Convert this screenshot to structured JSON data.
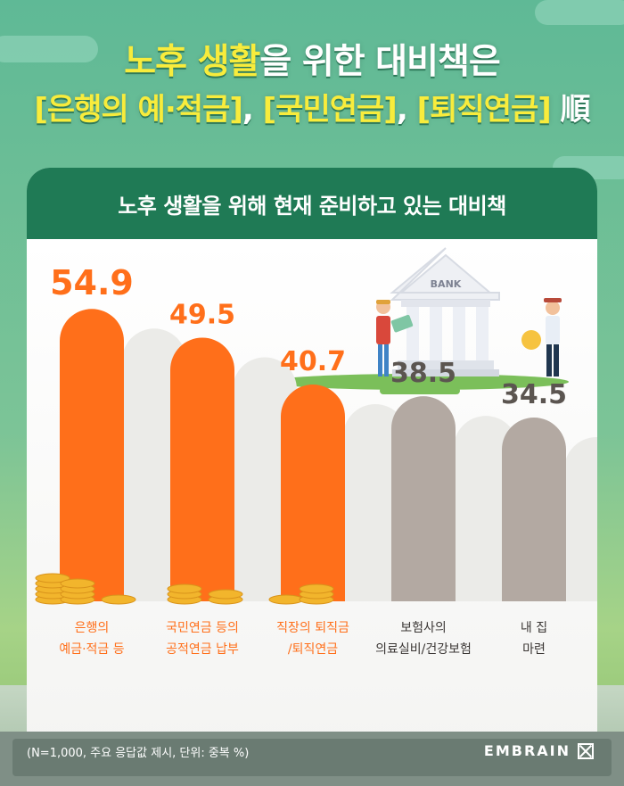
{
  "headline": {
    "line1_prefix": "노후 생활",
    "line1_suffix": "을 위한 대비책은",
    "line2_a": "[은행의 예·적금]",
    "line2_sep1": ", ",
    "line2_b": "[국민연금]",
    "line2_sep2": ", ",
    "line2_c": "[퇴직연금]",
    "line2_suffix": " 順"
  },
  "card_title": "노후 생활을 위해 현재 준비하고 있는 대비책",
  "illustration": {
    "bank_sign": "BANK"
  },
  "note": "(N=1,000, 주요 응답값 제시, 단위: 중복 %)",
  "brand": "EMBRAIN",
  "colors": {
    "orange": "#ff6f1a",
    "orange_light": "#ff9a2e",
    "gray_bar": "#b3a9a2",
    "gray_text": "#5b5550",
    "green_header": "#1f7a55",
    "yellow": "#f8ec3c"
  },
  "chart_data": {
    "type": "bar",
    "title": "노후 생활을 위해 현재 준비하고 있는 대비책",
    "xlabel": "",
    "ylabel": "",
    "categories": [
      [
        "은행의",
        "예금·적금 등"
      ],
      [
        "국민연금 등의",
        "공적연금 납부"
      ],
      [
        "직장의 퇴직금",
        "/퇴직연금"
      ],
      [
        "보험사의",
        "의료실비/건강보험"
      ],
      [
        "내 집",
        "마련"
      ]
    ],
    "values": [
      54.9,
      49.5,
      40.7,
      38.5,
      34.5
    ],
    "highlight": [
      true,
      true,
      true,
      false,
      false
    ],
    "ylim": [
      0,
      60
    ]
  }
}
